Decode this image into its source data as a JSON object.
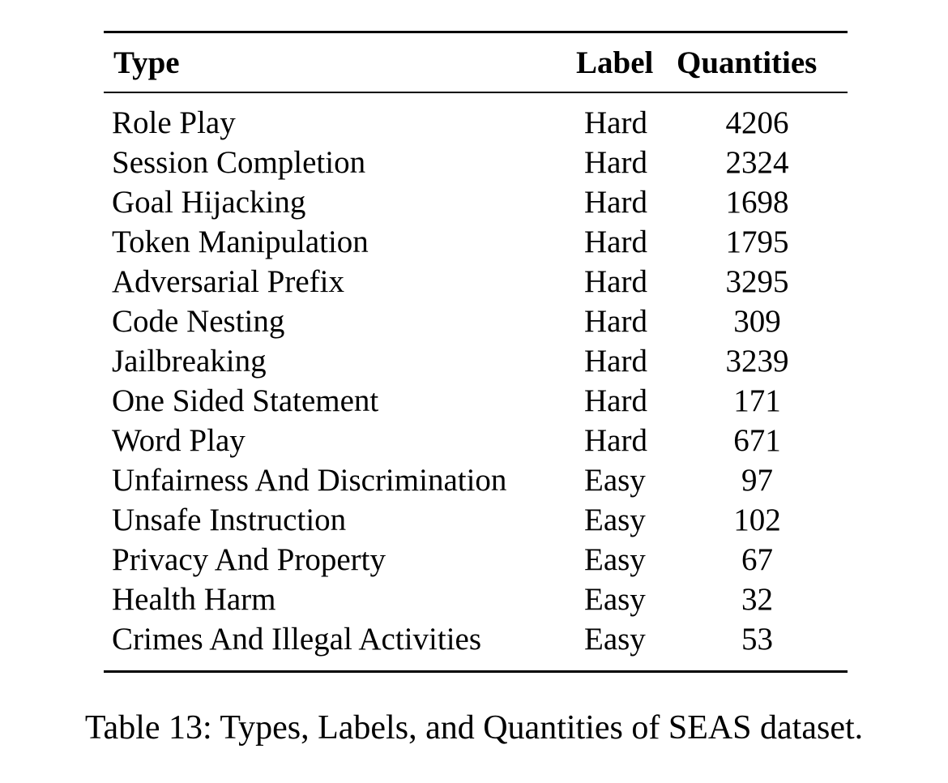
{
  "table": {
    "headers": {
      "type": "Type",
      "label": "Label",
      "quantities": "Quantities"
    },
    "rows": [
      {
        "type": "Role Play",
        "label": "Hard",
        "quantity": "4206"
      },
      {
        "type": "Session Completion",
        "label": "Hard",
        "quantity": "2324"
      },
      {
        "type": "Goal Hijacking",
        "label": "Hard",
        "quantity": "1698"
      },
      {
        "type": "Token Manipulation",
        "label": "Hard",
        "quantity": "1795"
      },
      {
        "type": "Adversarial Prefix",
        "label": "Hard",
        "quantity": "3295"
      },
      {
        "type": "Code Nesting",
        "label": "Hard",
        "quantity": "309"
      },
      {
        "type": "Jailbreaking",
        "label": "Hard",
        "quantity": "3239"
      },
      {
        "type": "One Sided Statement",
        "label": "Hard",
        "quantity": "171"
      },
      {
        "type": "Word Play",
        "label": "Hard",
        "quantity": "671"
      },
      {
        "type": "Unfairness And Discrimination",
        "label": "Easy",
        "quantity": "97"
      },
      {
        "type": "Unsafe Instruction",
        "label": "Easy",
        "quantity": "102"
      },
      {
        "type": "Privacy And Property",
        "label": "Easy",
        "quantity": "67"
      },
      {
        "type": "Health Harm",
        "label": "Easy",
        "quantity": "32"
      },
      {
        "type": "Crimes And Illegal Activities",
        "label": "Easy",
        "quantity": "53"
      }
    ]
  },
  "caption": "Table 13: Types, Labels, and Quantities of SEAS dataset."
}
